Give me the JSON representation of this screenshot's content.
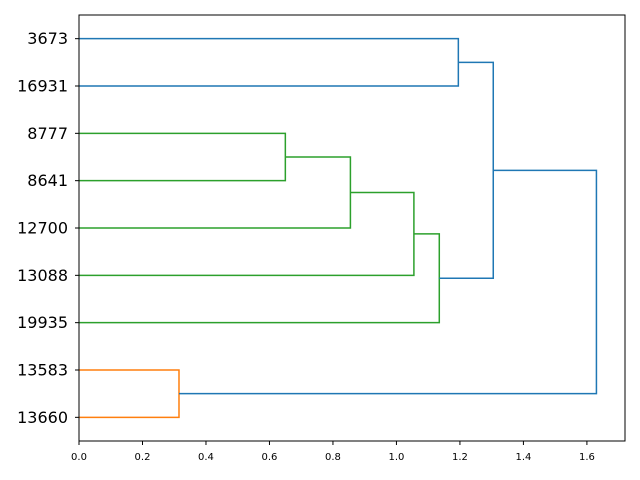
{
  "chart_data": {
    "type": "dendrogram",
    "orientation": "horizontal",
    "title": "",
    "xlabel": "",
    "ylabel": "",
    "xlim": [
      0,
      1.72
    ],
    "xticks": [
      0.0,
      0.2,
      0.4,
      0.6,
      0.8,
      1.0,
      1.2,
      1.4,
      1.6
    ],
    "tick_labels": [
      "0.0",
      "0.2",
      "0.4",
      "0.6",
      "0.8",
      "1.0",
      "1.2",
      "1.4",
      "1.6"
    ],
    "leaves": [
      "3673",
      "16931",
      "8777",
      "8641",
      "12700",
      "13088",
      "19935",
      "13583",
      "13660"
    ],
    "cluster_colors": {
      "blue": "#1f77b4",
      "green": "#2ca02c",
      "orange": "#ff7f0e"
    },
    "merges": [
      {
        "left": "8777",
        "right": "8641",
        "height": 0.65,
        "color": "#2ca02c"
      },
      {
        "left": "m0",
        "right": "12700",
        "height": 0.855,
        "color": "#2ca02c"
      },
      {
        "left": "m1",
        "right": "13088",
        "height": 1.055,
        "color": "#2ca02c"
      },
      {
        "left": "m2",
        "right": "19935",
        "height": 1.135,
        "color": "#2ca02c"
      },
      {
        "left": "3673",
        "right": "16931",
        "height": 1.195,
        "color": "#1f77b4"
      },
      {
        "left": "m4",
        "right": "m3",
        "height": 1.305,
        "color": "#1f77b4"
      },
      {
        "left": "13583",
        "right": "13660",
        "height": 0.315,
        "color": "#ff7f0e"
      },
      {
        "left": "m5",
        "right": "m6",
        "height": 1.63,
        "color": "#1f77b4"
      }
    ]
  }
}
